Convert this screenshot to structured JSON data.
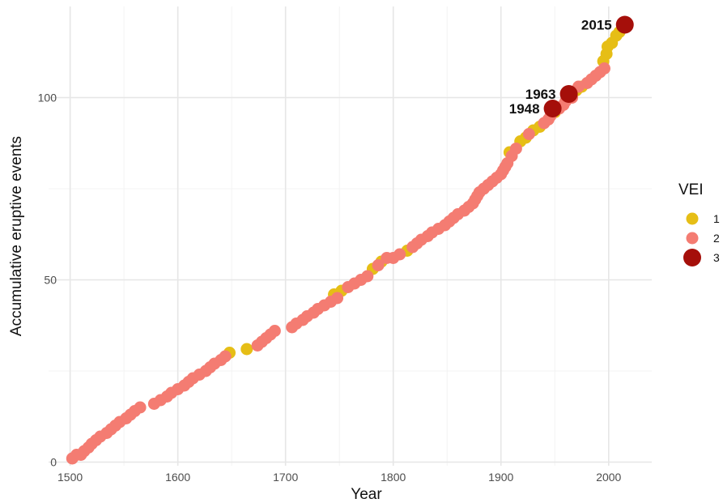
{
  "chart_data": {
    "type": "scatter",
    "xlabel": "Year",
    "ylabel": "Accumulative eruptive events",
    "xlim": [
      1480,
      2040
    ],
    "ylim": [
      -1,
      125
    ],
    "x_ticks": [
      1500,
      1600,
      1700,
      1800,
      1900,
      2000
    ],
    "y_ticks": [
      0,
      50,
      100
    ],
    "x_tick_labels": [
      "1500",
      "1600",
      "1700",
      "1800",
      "1900",
      "2000"
    ],
    "y_tick_labels": [
      "0",
      "50",
      "100"
    ],
    "grid": true,
    "legend": {
      "title": "VEI",
      "placement": "right",
      "entries": [
        {
          "label": "1",
          "color": "#E6BE16"
        },
        {
          "label": "2",
          "color": "#F47C72"
        },
        {
          "label": "3",
          "color": "#A50F0A"
        }
      ]
    },
    "annotations": [
      {
        "text": "1948",
        "x": 1948,
        "y": 97
      },
      {
        "text": "1963",
        "x": 1963,
        "y": 101
      },
      {
        "text": "2015",
        "x": 2015,
        "y": 120
      }
    ],
    "series": [
      {
        "name": "1",
        "color": "#E6BE16",
        "points": [
          [
            1648,
            30
          ],
          [
            1664,
            31
          ],
          [
            1745,
            46
          ],
          [
            1752,
            47
          ],
          [
            1781,
            53
          ],
          [
            1789,
            55
          ],
          [
            1813,
            58
          ],
          [
            1908,
            85
          ],
          [
            1918,
            88
          ],
          [
            1923,
            89
          ],
          [
            1930,
            91
          ],
          [
            1936,
            92
          ],
          [
            1950,
            96
          ],
          [
            1970,
            102
          ],
          [
            1975,
            103
          ],
          [
            1995,
            110
          ],
          [
            1998,
            112
          ],
          [
            1999,
            114
          ],
          [
            2003,
            115
          ],
          [
            2007,
            117
          ],
          [
            2010,
            118
          ]
        ]
      },
      {
        "name": "2",
        "color": "#F47C72",
        "points": [
          [
            1502,
            1
          ],
          [
            1506,
            2
          ],
          [
            1510,
            2
          ],
          [
            1513,
            3
          ],
          [
            1517,
            4
          ],
          [
            1520,
            5
          ],
          [
            1524,
            6
          ],
          [
            1528,
            7
          ],
          [
            1534,
            8
          ],
          [
            1538,
            9
          ],
          [
            1542,
            10
          ],
          [
            1546,
            11
          ],
          [
            1552,
            12
          ],
          [
            1556,
            13
          ],
          [
            1560,
            14
          ],
          [
            1565,
            15
          ],
          [
            1578,
            16
          ],
          [
            1584,
            17
          ],
          [
            1590,
            18
          ],
          [
            1594,
            19
          ],
          [
            1600,
            20
          ],
          [
            1606,
            21
          ],
          [
            1610,
            22
          ],
          [
            1614,
            23
          ],
          [
            1620,
            24
          ],
          [
            1626,
            25
          ],
          [
            1630,
            26
          ],
          [
            1634,
            27
          ],
          [
            1640,
            28
          ],
          [
            1644,
            29
          ],
          [
            1674,
            32
          ],
          [
            1678,
            33
          ],
          [
            1682,
            34
          ],
          [
            1686,
            35
          ],
          [
            1690,
            36
          ],
          [
            1706,
            37
          ],
          [
            1710,
            38
          ],
          [
            1716,
            39
          ],
          [
            1720,
            40
          ],
          [
            1726,
            41
          ],
          [
            1730,
            42
          ],
          [
            1736,
            43
          ],
          [
            1742,
            44
          ],
          [
            1748,
            45
          ],
          [
            1758,
            48
          ],
          [
            1764,
            49
          ],
          [
            1770,
            50
          ],
          [
            1776,
            51
          ],
          [
            1786,
            54
          ],
          [
            1794,
            56
          ],
          [
            1800,
            56
          ],
          [
            1806,
            57
          ],
          [
            1818,
            59
          ],
          [
            1822,
            60
          ],
          [
            1826,
            61
          ],
          [
            1832,
            62
          ],
          [
            1836,
            63
          ],
          [
            1842,
            64
          ],
          [
            1848,
            65
          ],
          [
            1852,
            66
          ],
          [
            1856,
            67
          ],
          [
            1860,
            68
          ],
          [
            1866,
            69
          ],
          [
            1870,
            70
          ],
          [
            1874,
            71
          ],
          [
            1876,
            72
          ],
          [
            1878,
            73
          ],
          [
            1880,
            74
          ],
          [
            1884,
            75
          ],
          [
            1888,
            76
          ],
          [
            1892,
            77
          ],
          [
            1896,
            78
          ],
          [
            1900,
            79
          ],
          [
            1902,
            80
          ],
          [
            1904,
            81
          ],
          [
            1906,
            82
          ],
          [
            1910,
            84
          ],
          [
            1914,
            86
          ],
          [
            1926,
            90
          ],
          [
            1940,
            93
          ],
          [
            1944,
            94
          ],
          [
            1946,
            95
          ],
          [
            1954,
            97
          ],
          [
            1958,
            98
          ],
          [
            1960,
            99
          ],
          [
            1966,
            100
          ],
          [
            1972,
            103
          ],
          [
            1980,
            104
          ],
          [
            1984,
            105
          ],
          [
            1988,
            106
          ],
          [
            1992,
            107
          ],
          [
            1996,
            108
          ]
        ]
      },
      {
        "name": "3",
        "color": "#A50F0A",
        "points": [
          [
            1948,
            97
          ],
          [
            1963,
            101
          ],
          [
            2015,
            120
          ]
        ]
      }
    ]
  }
}
